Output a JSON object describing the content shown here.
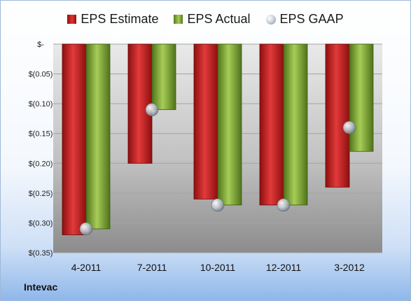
{
  "chart_data": {
    "type": "bar",
    "company": "Intevac",
    "categories": [
      "4-2011",
      "7-2011",
      "10-2011",
      "12-2011",
      "3-2012"
    ],
    "series": [
      {
        "name": "EPS Estimate",
        "kind": "bar",
        "color": "#cc2020",
        "values": [
          -0.32,
          -0.2,
          -0.26,
          -0.27,
          -0.24
        ]
      },
      {
        "name": "EPS Actual",
        "kind": "bar",
        "color": "#8db643",
        "values": [
          -0.31,
          -0.11,
          -0.27,
          -0.27,
          -0.18
        ]
      },
      {
        "name": "EPS GAAP",
        "kind": "marker",
        "color": "#a9b2bd",
        "values": [
          -0.31,
          -0.11,
          -0.27,
          -0.27,
          -0.14
        ]
      }
    ],
    "ylim": [
      -0.35,
      0
    ],
    "yticks": [
      0,
      -0.05,
      -0.1,
      -0.15,
      -0.2,
      -0.25,
      -0.3,
      -0.35
    ],
    "ytick_labels": [
      "$-",
      "$(0.05)",
      "$(0.10)",
      "$(0.15)",
      "$(0.20)",
      "$(0.25)",
      "$(0.30)",
      "$(0.35)"
    ],
    "grid": true,
    "legend_position": "top"
  }
}
